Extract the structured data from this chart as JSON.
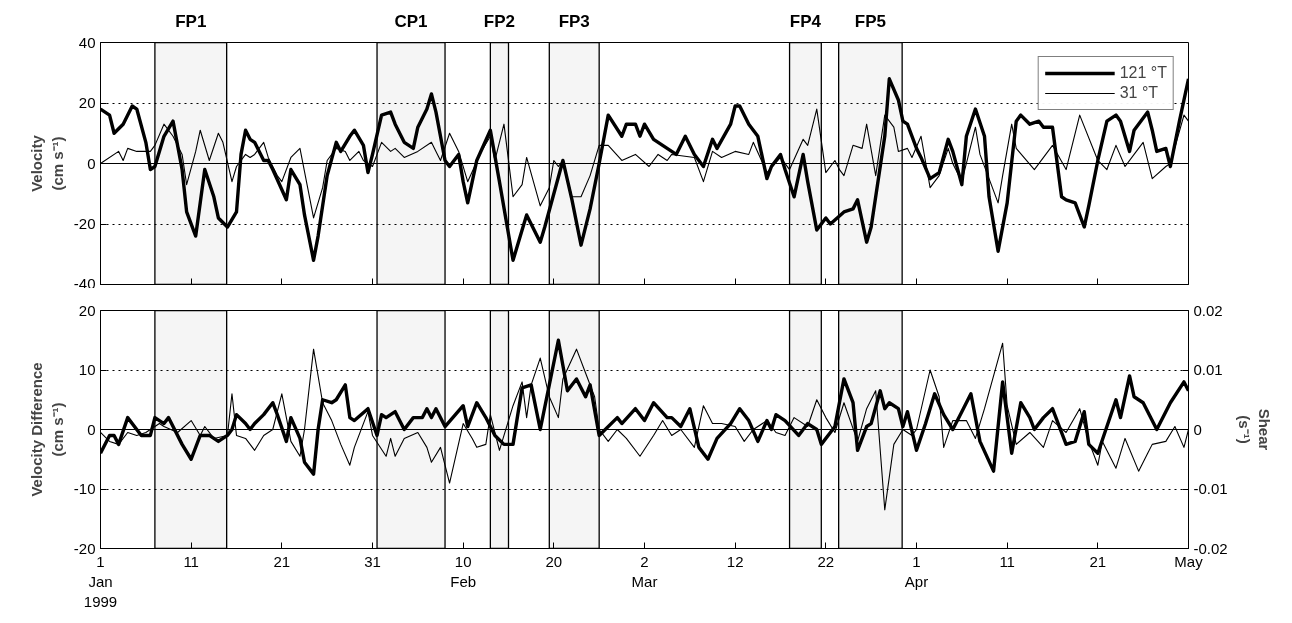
{
  "chart_data": [
    {
      "type": "line",
      "ylabel": "Velocity\n(cm s⁻¹)",
      "xlim": [
        "1999-01-01",
        "1999-05-01"
      ],
      "ylim": [
        -40,
        40
      ],
      "yticks": [
        -40,
        -20,
        0,
        20,
        40
      ],
      "xticks": [
        {
          "value": "1999-01-01",
          "label": null
        },
        {
          "value": "1999-01-11",
          "label": null
        },
        {
          "value": "1999-01-21",
          "label": null
        },
        {
          "value": "1999-01-31",
          "label": null
        },
        {
          "value": "1999-02-10",
          "label": null
        },
        {
          "value": "1999-02-20",
          "label": null
        },
        {
          "value": "1999-03-02",
          "label": null
        },
        {
          "value": "1999-03-12",
          "label": null
        },
        {
          "value": "1999-03-22",
          "label": null
        },
        {
          "value": "1999-04-01",
          "label": null
        },
        {
          "value": "1999-04-11",
          "label": null
        },
        {
          "value": "1999-04-21",
          "label": null
        },
        {
          "value": "1999-05-01",
          "label": null
        }
      ],
      "tick_labels": "y",
      "grid": "y",
      "legend": "top right",
      "line_style": "solid",
      "ref_lines": [
        {
          "axis": "y",
          "value": 0,
          "color": "#000000"
        }
      ],
      "bands": [
        {
          "axis": "x",
          "from": "1999-01-07",
          "to": "1999-01-14T22:00",
          "label": "FP1",
          "color": "#000000"
        },
        {
          "axis": "x",
          "from": "1999-01-31T12:00",
          "to": "1999-02-08",
          "label": "CP1",
          "color": "#000000"
        },
        {
          "axis": "x",
          "from": "1999-02-13",
          "to": "1999-02-15",
          "label": "FP2",
          "color": "#000000"
        },
        {
          "axis": "x",
          "from": "1999-02-19T12:00",
          "to": "1999-02-25",
          "label": "FP3",
          "color": "#000000"
        },
        {
          "axis": "x",
          "from": "1999-03-18",
          "to": "1999-03-21T12:00",
          "label": "FP4",
          "color": "#000000"
        },
        {
          "axis": "x",
          "from": "1999-03-23T10:00",
          "to": "1999-03-30T10:00",
          "label": "FP5",
          "color": "#000000"
        }
      ],
      "series": [
        {
          "name": "121 °T",
          "color": "#000000",
          "x": [
            "1999-01-01",
            "1999-01-02",
            "1999-01-02T12:00",
            "1999-01-03T12:00",
            "1999-01-04T12:00",
            "1999-01-05",
            "1999-01-06",
            "1999-01-06T12:00",
            "1999-01-07",
            "1999-01-08",
            "1999-01-09",
            "1999-01-10",
            "1999-01-10T12:00",
            "1999-01-11T12:00",
            "1999-01-12",
            "1999-01-12T12:00",
            "1999-01-13T12:00",
            "1999-01-14",
            "1999-01-15",
            "1999-01-16",
            "1999-01-16T12:00",
            "1999-01-17",
            "1999-01-17T12:00",
            "1999-01-18",
            "1999-01-19",
            "1999-01-19T12:00",
            "1999-01-20",
            "1999-01-21T12:00",
            "1999-01-22",
            "1999-01-23",
            "1999-01-23T12:00",
            "1999-01-24T12:00",
            "1999-01-25",
            "1999-01-26",
            "1999-01-27",
            "1999-01-27T12:00",
            "1999-01-28T12:00",
            "1999-01-29",
            "1999-01-30",
            "1999-01-30T12:00",
            "1999-01-31",
            "1999-02-01",
            "1999-02-02",
            "1999-02-02T12:00",
            "1999-02-03T12:00",
            "1999-02-04T12:00",
            "1999-02-05",
            "1999-02-06",
            "1999-02-06T12:00",
            "1999-02-07",
            "1999-02-08",
            "1999-02-08T12:00",
            "1999-02-09T12:00",
            "1999-02-10",
            "1999-02-10T12:00",
            "1999-02-11T12:00",
            "1999-02-13",
            "1999-02-14",
            "1999-02-15T12:00",
            "1999-02-16T12:00",
            "1999-02-17",
            "1999-02-18T12:00",
            "1999-02-19",
            "1999-02-21",
            "1999-02-22",
            "1999-02-23",
            "1999-02-24",
            "1999-02-25",
            "1999-02-26",
            "1999-02-27T12:00",
            "1999-02-28",
            "1999-03-01",
            "1999-03-01T12:00",
            "1999-03-02",
            "1999-03-03",
            "1999-03-04",
            "1999-03-05T12:00",
            "1999-03-06T12:00",
            "1999-03-07T12:00",
            "1999-03-08T12:00",
            "1999-03-09T12:00",
            "1999-03-10",
            "1999-03-11T12:00",
            "1999-03-12",
            "1999-03-12T12:00",
            "1999-03-13T12:00",
            "1999-03-14T12:00",
            "1999-03-15T12:00",
            "1999-03-16",
            "1999-03-17",
            "1999-03-17T12:00",
            "1999-03-18T12:00",
            "1999-03-19T12:00",
            "1999-03-20",
            "1999-03-21",
            "1999-03-22",
            "1999-03-22T12:00",
            "1999-03-24",
            "1999-03-25",
            "1999-03-25T12:00",
            "1999-03-26T12:00",
            "1999-03-27",
            "1999-03-28T12:00",
            "1999-03-29",
            "1999-03-30",
            "1999-03-30T12:00",
            "1999-03-31",
            "1999-04-01",
            "1999-04-01T12:00",
            "1999-04-02T12:00",
            "1999-04-03T12:00",
            "1999-04-04T12:00",
            "1999-04-05",
            "1999-04-06",
            "1999-04-06T12:00",
            "1999-04-07T12:00",
            "1999-04-08T12:00",
            "1999-04-09",
            "1999-04-10",
            "1999-04-11",
            "1999-04-12",
            "1999-04-12T12:00",
            "1999-04-13T12:00",
            "1999-04-14T12:00",
            "1999-04-15",
            "1999-04-16",
            "1999-04-17",
            "1999-04-17T12:00",
            "1999-04-18T12:00",
            "1999-04-19T12:00",
            "1999-04-20",
            "1999-04-21",
            "1999-04-22",
            "1999-04-23",
            "1999-04-23T12:00",
            "1999-04-24T12:00",
            "1999-04-25",
            "1999-04-26T12:00",
            "1999-04-27",
            "1999-04-27T12:00",
            "1999-04-28T12:00",
            "1999-04-29",
            "1999-04-30",
            "1999-05-01"
          ],
          "values": [
            18,
            16,
            10,
            13,
            19,
            18,
            7,
            -2,
            -1,
            9,
            14,
            -2,
            -16,
            -24,
            -13,
            -2,
            -11,
            -18,
            -21,
            -16,
            3,
            11,
            8,
            7,
            1,
            1,
            -2,
            -12,
            -2,
            -7,
            -17,
            -32,
            -24,
            -4,
            7,
            4,
            9,
            11,
            6,
            -3,
            3,
            16,
            17,
            13,
            7,
            5,
            12,
            18,
            23,
            17,
            1,
            -1,
            3,
            -6,
            -13,
            1,
            11,
            -6,
            -32,
            -22,
            -17,
            -26,
            -21,
            1,
            -12,
            -27,
            -15,
            0,
            16,
            9,
            13,
            13,
            9,
            13,
            8,
            6,
            3,
            9,
            3,
            -1,
            8,
            5,
            13,
            19,
            19,
            13,
            9,
            -5,
            -1,
            3,
            -2,
            -11,
            3,
            -6,
            -22,
            -18,
            -20,
            -16,
            -15,
            -12,
            -26,
            -21,
            9,
            28,
            21,
            14,
            13,
            5,
            2,
            -5,
            -3,
            8,
            4,
            -7,
            9,
            18,
            9,
            -11,
            -29,
            -13,
            14,
            16,
            13,
            14,
            12,
            12,
            -11,
            -12,
            -13,
            -21,
            -14,
            1,
            14,
            16,
            14,
            4,
            11,
            17,
            11,
            4,
            5,
            -1,
            14,
            28
          ]
        },
        {
          "name": "31 °T",
          "color": "#000000",
          "x": [
            "1999-01-01",
            "1999-01-03",
            "1999-01-03T12:00",
            "1999-01-04",
            "1999-01-05",
            "1999-01-06T12:00",
            "1999-01-07",
            "1999-01-08",
            "1999-01-09",
            "1999-01-10",
            "1999-01-10T12:00",
            "1999-01-11T12:00",
            "1999-01-12",
            "1999-01-13",
            "1999-01-14",
            "1999-01-14T12:00",
            "1999-01-15T12:00",
            "1999-01-16",
            "1999-01-17",
            "1999-01-17T12:00",
            "1999-01-18",
            "1999-01-19",
            "1999-01-19T12:00",
            "1999-01-20T12:00",
            "1999-01-21",
            "1999-01-22",
            "1999-01-23",
            "1999-01-24T12:00",
            "1999-01-25T12:00",
            "1999-01-26",
            "1999-01-27",
            "1999-01-28",
            "1999-01-28T12:00",
            "1999-01-29T12:00",
            "1999-01-30",
            "1999-01-31",
            "1999-02-01",
            "1999-02-02",
            "1999-02-02T12:00",
            "1999-02-03T12:00",
            "1999-02-05",
            "1999-02-06T12:00",
            "1999-02-07",
            "1999-02-07T12:00",
            "1999-02-08T12:00",
            "1999-02-09T12:00",
            "1999-02-10T12:00",
            "1999-02-12",
            "1999-02-13",
            "1999-02-13T12:00",
            "1999-02-14T12:00",
            "1999-02-15T12:00",
            "1999-02-16T12:00",
            "1999-02-17",
            "1999-02-18T12:00",
            "1999-02-19T12:00",
            "1999-02-20",
            "1999-02-20T12:00",
            "1999-02-21",
            "1999-02-22",
            "1999-02-23",
            "1999-02-24",
            "1999-02-25",
            "1999-02-26",
            "1999-02-27T12:00",
            "1999-03-01",
            "1999-03-02T12:00",
            "1999-03-03T12:00",
            "1999-03-04T12:00",
            "1999-03-05",
            "1999-03-07T12:00",
            "1999-03-08T12:00",
            "1999-03-09T12:00",
            "1999-03-10T12:00",
            "1999-03-12",
            "1999-03-13T12:00",
            "1999-03-14",
            "1999-03-15T12:00",
            "1999-03-17",
            "1999-03-18",
            "1999-03-19T12:00",
            "1999-03-20",
            "1999-03-21",
            "1999-03-22",
            "1999-03-23",
            "1999-03-23T12:00",
            "1999-03-24",
            "1999-03-25",
            "1999-03-26",
            "1999-03-26T12:00",
            "1999-03-27T12:00",
            "1999-03-28T12:00",
            "1999-03-29T12:00",
            "1999-03-30",
            "1999-03-31",
            "1999-03-31T12:00",
            "1999-04-01T12:00",
            "1999-04-02T12:00",
            "1999-04-03T12:00",
            "1999-04-04T12:00",
            "1999-04-05",
            "1999-04-06",
            "1999-04-07T12:00",
            "1999-04-08",
            "1999-04-10",
            "1999-04-10T12:00",
            "1999-04-11T12:00",
            "1999-04-12",
            "1999-04-14",
            "1999-04-16",
            "1999-04-17T12:00",
            "1999-04-19",
            "1999-04-21",
            "1999-04-22",
            "1999-04-23",
            "1999-04-24",
            "1999-04-25",
            "1999-04-26",
            "1999-04-27",
            "1999-04-28T12:00",
            "1999-04-29",
            "1999-04-30T12:00",
            "1999-05-01"
          ],
          "values": [
            0,
            4,
            1,
            5,
            4,
            4,
            6,
            13,
            9,
            3,
            -7,
            4,
            11,
            1,
            10,
            7,
            -6,
            -1,
            3,
            2,
            3,
            7,
            2,
            -4,
            -6,
            2,
            5,
            -18,
            -8,
            1,
            5,
            4,
            1,
            4,
            1,
            -1,
            7,
            4,
            5,
            2,
            4,
            7,
            4,
            1,
            10,
            4,
            -6,
            4,
            9,
            1,
            13,
            -11,
            -7,
            2,
            -14,
            -8,
            1,
            -1,
            1,
            -11,
            -11,
            -4,
            6,
            6,
            1,
            3,
            -1,
            3,
            1,
            3,
            2,
            -6,
            4,
            2,
            4,
            3,
            7,
            -3,
            2,
            -2,
            8,
            6,
            18,
            -3,
            1,
            -2,
            -4,
            6,
            5,
            13,
            -4,
            16,
            12,
            4,
            5,
            2,
            9,
            -8,
            -4,
            5,
            0,
            -6,
            12,
            3,
            -13,
            -4,
            13,
            5,
            -2,
            6,
            -2,
            16,
            1,
            -2,
            6,
            -1,
            3,
            7,
            -5,
            -1,
            0,
            16,
            14
          ]
        }
      ]
    },
    {
      "type": "line",
      "ylabel": "Velocity Difference\n(cm s⁻¹)",
      "y2label": "Shear\n(s⁻¹)",
      "xlim": [
        "1999-01-01",
        "1999-05-01"
      ],
      "ylim": [
        -20,
        20
      ],
      "yticks": [
        -20,
        -10,
        0,
        10,
        20
      ],
      "y2lim": [
        -0.02,
        0.02
      ],
      "y2ticks": [
        -0.02,
        -0.01,
        0,
        0.01,
        0.02
      ],
      "xticks": [
        {
          "value": "1999-01-01",
          "label": "1\nJan\n1999"
        },
        {
          "value": "1999-01-11",
          "label": "11"
        },
        {
          "value": "1999-01-21",
          "label": "21"
        },
        {
          "value": "1999-01-31",
          "label": "31"
        },
        {
          "value": "1999-02-10",
          "label": "10\nFeb"
        },
        {
          "value": "1999-02-20",
          "label": "20"
        },
        {
          "value": "1999-03-02",
          "label": "2\nMar"
        },
        {
          "value": "1999-03-12",
          "label": "12"
        },
        {
          "value": "1999-03-22",
          "label": "22"
        },
        {
          "value": "1999-04-01",
          "label": "1\nApr"
        },
        {
          "value": "1999-04-11",
          "label": "11"
        },
        {
          "value": "1999-04-21",
          "label": "21"
        },
        {
          "value": "1999-05-01",
          "label": "May"
        }
      ],
      "grid": "y",
      "line_style": "solid",
      "ref_lines": [
        {
          "axis": "y",
          "value": 0,
          "color": "#000000"
        }
      ],
      "bands": [
        {
          "axis": "x",
          "from": "1999-01-07",
          "to": "1999-01-14T22:00",
          "color": "#000000"
        },
        {
          "axis": "x",
          "from": "1999-01-31T12:00",
          "to": "1999-02-08",
          "color": "#000000"
        },
        {
          "axis": "x",
          "from": "1999-02-13",
          "to": "1999-02-15",
          "color": "#000000"
        },
        {
          "axis": "x",
          "from": "1999-02-19T12:00",
          "to": "1999-02-25",
          "color": "#000000"
        },
        {
          "axis": "x",
          "from": "1999-03-18",
          "to": "1999-03-21T12:00",
          "color": "#000000"
        },
        {
          "axis": "x",
          "from": "1999-03-23T10:00",
          "to": "1999-03-30T10:00",
          "color": "#000000"
        }
      ],
      "series": [
        {
          "color": "#000000",
          "x": [
            "1999-01-01",
            "1999-01-02",
            "1999-01-02T12:00",
            "1999-01-03",
            "1999-01-04",
            "1999-01-05T12:00",
            "1999-01-06T12:00",
            "1999-01-07",
            "1999-01-08",
            "1999-01-08T12:00",
            "1999-01-10",
            "1999-01-11",
            "1999-01-12",
            "1999-01-13",
            "1999-01-14",
            "1999-01-15",
            "1999-01-15T12:00",
            "1999-01-16",
            "1999-01-17",
            "1999-01-17T12:00",
            "1999-01-18",
            "1999-01-19",
            "1999-01-20",
            "1999-01-20T12:00",
            "1999-01-21T12:00",
            "1999-01-22",
            "1999-01-23",
            "1999-01-23T12:00",
            "1999-01-24T12:00",
            "1999-01-25",
            "1999-01-25T12:00",
            "1999-01-26T12:00",
            "1999-01-27",
            "1999-01-28",
            "1999-01-28T12:00",
            "1999-01-29",
            "1999-01-30T12:00",
            "1999-01-31T12:00",
            "1999-02-01",
            "1999-02-01T12:00",
            "1999-02-02T12:00",
            "1999-02-03T12:00",
            "1999-02-04T12:00",
            "1999-02-05T12:00",
            "1999-02-06",
            "1999-02-06T12:00",
            "1999-02-07",
            "1999-02-08",
            "1999-02-10",
            "1999-02-10T12:00",
            "1999-02-11T12:00",
            "1999-02-12T12:00",
            "1999-02-13T12:00",
            "1999-02-14T12:00",
            "1999-02-15T12:00",
            "1999-02-16T12:00",
            "1999-02-17T12:00",
            "1999-02-18T12:00",
            "1999-02-19T12:00",
            "1999-02-20T12:00",
            "1999-02-21T12:00",
            "1999-02-22T12:00",
            "1999-02-23T12:00",
            "1999-02-24",
            "1999-02-25",
            "1999-02-27",
            "1999-02-27T12:00",
            "1999-03-01",
            "1999-03-02",
            "1999-03-03",
            "1999-03-04T12:00",
            "1999-03-05",
            "1999-03-06",
            "1999-03-07",
            "1999-03-08",
            "1999-03-09",
            "1999-03-10",
            "1999-03-11T12:00",
            "1999-03-12T12:00",
            "1999-03-13T12:00",
            "1999-03-14T12:00",
            "1999-03-15T12:00",
            "1999-03-16",
            "1999-03-16T12:00",
            "1999-03-17T12:00",
            "1999-03-19",
            "1999-03-20",
            "1999-03-21",
            "1999-03-21T12:00",
            "1999-03-22T12:00",
            "1999-03-23",
            "1999-03-24",
            "1999-03-25",
            "1999-03-25T12:00",
            "1999-03-26T12:00",
            "1999-03-27",
            "1999-03-28",
            "1999-03-28T12:00",
            "1999-03-29",
            "1999-03-30",
            "1999-03-30T12:00",
            "1999-03-31",
            "1999-04-01",
            "1999-04-02",
            "1999-04-03",
            "1999-04-04",
            "1999-04-05",
            "1999-04-06",
            "1999-04-07",
            "1999-04-08",
            "1999-04-09T12:00",
            "1999-04-10T12:00",
            "1999-04-11T12:00",
            "1999-04-12T12:00",
            "1999-04-13T12:00",
            "1999-04-14",
            "1999-04-15",
            "1999-04-16",
            "1999-04-17T12:00",
            "1999-04-18T12:00",
            "1999-04-19T12:00",
            "1999-04-20",
            "1999-04-21",
            "1999-04-22",
            "1999-04-23",
            "1999-04-23T12:00",
            "1999-04-24T12:00",
            "1999-04-25",
            "1999-04-26",
            "1999-04-27T12:00",
            "1999-04-29",
            "1999-04-30T12:00",
            "1999-05-01"
          ],
          "values": [
            -4,
            -1,
            -1,
            -2.5,
            2,
            -1,
            -1,
            2,
            1,
            2,
            -2.5,
            -5,
            -1,
            -1,
            -2,
            -1,
            0,
            2.5,
            1,
            0,
            1,
            2.5,
            4.5,
            2.5,
            -2,
            2,
            -1.5,
            -5.5,
            -7.5,
            0,
            5,
            4.5,
            5,
            7.5,
            2,
            1.5,
            3.5,
            -1,
            2.5,
            2,
            3,
            0,
            2,
            2,
            3.5,
            2,
            3.5,
            0.5,
            4,
            0.5,
            4.5,
            2,
            -1,
            -2.5,
            -2.5,
            7,
            7.5,
            0,
            7.5,
            15,
            6.5,
            8.5,
            5.5,
            7.5,
            -1,
            2,
            1,
            3.5,
            1.5,
            4.5,
            2,
            2,
            0.5,
            3.5,
            -3,
            -5,
            -1.5,
            1,
            3.5,
            1.5,
            -2,
            1.5,
            0,
            2.5,
            1.5,
            -1,
            1,
            0,
            -2.5,
            -0.5,
            0.5,
            8.5,
            4.5,
            -3.5,
            0.5,
            1,
            6.5,
            3.5,
            4.5,
            3.5,
            0.5,
            3,
            -3.5,
            1,
            6,
            2.5,
            0,
            3,
            6,
            -2,
            -7,
            8,
            -4,
            4.5,
            2,
            0,
            2,
            3.5,
            -2.5,
            -2,
            3,
            -2.5,
            -4,
            0.5,
            5,
            2,
            9,
            5.5,
            4.5,
            0,
            4.5,
            8,
            6.5
          ]
        },
        {
          "color": "#000000",
          "axis": "y2",
          "x": [
            "1999-01-01",
            "1999-01-02",
            "1999-01-03",
            "1999-01-04",
            "1999-01-05",
            "1999-01-06",
            "1999-01-07T12:00",
            "1999-01-08",
            "1999-01-09T12:00",
            "1999-01-11",
            "1999-01-12",
            "1999-01-12T12:00",
            "1999-01-13T12:00",
            "1999-01-15",
            "1999-01-15T12:00",
            "1999-01-16",
            "1999-01-17",
            "1999-01-18",
            "1999-01-19",
            "1999-01-20",
            "1999-01-20T12:00",
            "1999-01-21",
            "1999-01-22",
            "1999-01-23",
            "1999-01-23T12:00",
            "1999-01-24T12:00",
            "1999-01-25T12:00",
            "1999-01-26T12:00",
            "1999-01-27T12:00",
            "1999-01-28T12:00",
            "1999-01-29",
            "1999-01-30T12:00",
            "1999-01-31",
            "1999-02-01T12:00",
            "1999-02-02",
            "1999-02-02T12:00",
            "1999-02-03T12:00",
            "1999-02-05",
            "1999-02-06",
            "1999-02-06T12:00",
            "1999-02-07T12:00",
            "1999-02-08T12:00",
            "1999-02-10",
            "1999-02-11",
            "1999-02-11T12:00",
            "1999-02-12T12:00",
            "1999-02-13",
            "1999-02-14",
            "1999-02-15T12:00",
            "1999-02-16T12:00",
            "1999-02-17",
            "1999-02-17T12:00",
            "1999-02-18T12:00",
            "1999-02-19T12:00",
            "1999-02-20T12:00",
            "1999-02-21",
            "1999-02-22T12:00",
            "1999-02-23T12:00",
            "1999-02-24T12:00",
            "1999-02-25",
            "1999-02-26",
            "1999-02-27",
            "1999-02-28",
            "1999-03-01T12:00",
            "1999-03-03",
            "1999-03-04",
            "1999-03-05",
            "1999-03-06",
            "1999-03-07T12:00",
            "1999-03-08T12:00",
            "1999-03-09T12:00",
            "1999-03-10T12:00",
            "1999-03-12",
            "1999-03-13",
            "1999-03-14",
            "1999-03-15T12:00",
            "1999-03-16T12:00",
            "1999-03-17T12:00",
            "1999-03-18T12:00",
            "1999-03-20",
            "1999-03-21",
            "1999-03-22",
            "1999-03-23",
            "1999-03-24",
            "1999-03-25T12:00",
            "1999-03-26T12:00",
            "1999-03-27T12:00",
            "1999-03-28T12:00",
            "1999-03-29T12:00",
            "1999-03-30T12:00",
            "1999-03-31T12:00",
            "1999-04-01",
            "1999-04-02T12:00",
            "1999-04-03T12:00",
            "1999-04-04",
            "1999-04-05",
            "1999-04-06T12:00",
            "1999-04-07T12:00",
            "1999-04-08T12:00",
            "1999-04-10T12:00",
            "1999-04-11",
            "1999-04-12",
            "1999-04-13T12:00",
            "1999-04-15",
            "1999-04-16",
            "1999-04-17T12:00",
            "1999-04-19",
            "1999-04-20",
            "1999-04-21",
            "1999-04-21T12:00",
            "1999-04-23",
            "1999-04-24",
            "1999-04-25T12:00",
            "1999-04-26T12:00",
            "1999-04-27",
            "1999-04-28T12:00",
            "1999-04-29T12:00",
            "1999-04-30T12:00",
            "1999-05-01"
          ],
          "values": [
            -0.0005,
            -0.002,
            -0.0025,
            -0.0005,
            -0.001,
            -0.0005,
            0.001,
            0.0005,
            -0.0005,
            0.0015,
            -0.001,
            0.0005,
            -0.0015,
            -0.001,
            0.006,
            -0.001,
            -0.0015,
            -0.0035,
            -0.001,
            0,
            0.003,
            0.006,
            -0.002,
            -0.0045,
            0,
            0.0135,
            0.0045,
            0.0015,
            -0.0025,
            -0.006,
            -0.003,
            0.003,
            -0.001,
            -0.0045,
            -0.0015,
            -0.0045,
            -0.0015,
            -0.0005,
            -0.003,
            -0.0055,
            -0.003,
            -0.009,
            0.001,
            -0.0015,
            -0.003,
            -0.0025,
            0.0025,
            -0.0035,
            0.004,
            0.008,
            0.002,
            0.0075,
            0.012,
            0.0055,
            0.002,
            0.0085,
            0.0135,
            0.0095,
            0.0055,
            0,
            -0.002,
            0,
            -0.0015,
            -0.0045,
            -0.001,
            0.0015,
            -0.001,
            0,
            -0.003,
            0.004,
            0.001,
            0.001,
            0.0005,
            -0.002,
            0,
            0.0015,
            -0.0005,
            -0.001,
            0.002,
            0.0005,
            0.005,
            0.002,
            -0.0005,
            0.0045,
            -0.002,
            0.0035,
            0.0065,
            -0.0135,
            -0.0025,
            0,
            -0.001,
            0,
            0.01,
            0.0055,
            -0.003,
            0.0015,
            0.0015,
            -0.0015,
            0.0035,
            0.0145,
            0.004,
            -0.0025,
            -0.0005,
            -0.003,
            0.0015,
            -0.0005,
            0.0035,
            -0.002,
            -0.006,
            -0.002,
            -0.0065,
            -0.0015,
            -0.007,
            -0.004,
            -0.0025,
            -0.002,
            0.0005,
            -0.003,
            0
          ]
        }
      ]
    }
  ]
}
